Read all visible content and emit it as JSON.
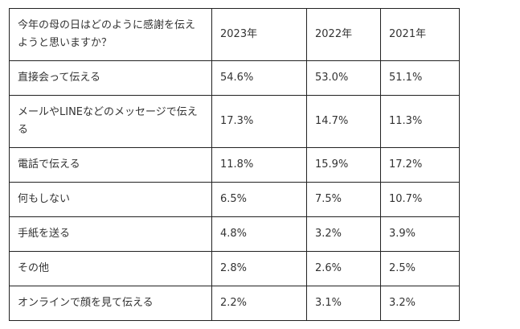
{
  "table": {
    "header": {
      "question": "今年の母の日はどのように感謝を伝えようと思いますか？",
      "years": [
        "2023年",
        "2022年",
        "2021年"
      ]
    },
    "rows": [
      {
        "label": "直接会って伝える",
        "values": [
          "54.6%",
          "53.0%",
          "51.1%"
        ]
      },
      {
        "label": "メールやLINEなどのメッセージで伝える",
        "values": [
          "17.3%",
          "14.7%",
          "11.3%"
        ]
      },
      {
        "label": "電話で伝える",
        "values": [
          "11.8%",
          "15.9%",
          "17.2%"
        ]
      },
      {
        "label": "何もしない",
        "values": [
          "6.5%",
          "7.5%",
          "10.7%"
        ]
      },
      {
        "label": "手紙を送る",
        "values": [
          "4.8%",
          "3.2%",
          "3.9%"
        ]
      },
      {
        "label": "その他",
        "values": [
          "2.8%",
          "2.6%",
          "2.5%"
        ]
      },
      {
        "label": "オンラインで顔を見て伝える",
        "values": [
          "2.2%",
          "3.1%",
          "3.2%"
        ]
      }
    ]
  }
}
